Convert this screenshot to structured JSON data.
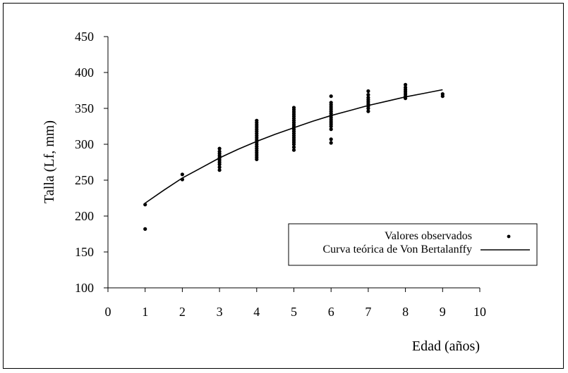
{
  "chart_data": {
    "type": "scatter",
    "xlabel": "Edad (años)",
    "ylabel": "Talla (Lf, mm)",
    "xlim": [
      0,
      10
    ],
    "ylim": [
      100,
      450
    ],
    "xticks": [
      0,
      1,
      2,
      3,
      4,
      5,
      6,
      7,
      8,
      9,
      10
    ],
    "yticks": [
      100,
      150,
      200,
      250,
      300,
      350,
      400,
      450
    ],
    "grid": false,
    "legend_position": "bottom-right",
    "legend": [
      "Valores observados",
      "Curva teórica de Von Bertalanffy"
    ],
    "series": [
      {
        "name": "Valores observados",
        "kind": "points",
        "color": "#000000",
        "points": [
          [
            1,
            216
          ],
          [
            1,
            182
          ],
          [
            2,
            258
          ],
          [
            2,
            251
          ],
          [
            3,
            294
          ],
          [
            3,
            290
          ],
          [
            3,
            287
          ],
          [
            3,
            284
          ],
          [
            3,
            281
          ],
          [
            3,
            278
          ],
          [
            3,
            275
          ],
          [
            3,
            272
          ],
          [
            3,
            268
          ],
          [
            3,
            264
          ],
          [
            4,
            333
          ],
          [
            4,
            330
          ],
          [
            4,
            327
          ],
          [
            4,
            324
          ],
          [
            4,
            321
          ],
          [
            4,
            318
          ],
          [
            4,
            315
          ],
          [
            4,
            312
          ],
          [
            4,
            309
          ],
          [
            4,
            306
          ],
          [
            4,
            303
          ],
          [
            4,
            300
          ],
          [
            4,
            297
          ],
          [
            4,
            294
          ],
          [
            4,
            291
          ],
          [
            4,
            288
          ],
          [
            4,
            285
          ],
          [
            4,
            282
          ],
          [
            4,
            279
          ],
          [
            5,
            351
          ],
          [
            5,
            348
          ],
          [
            5,
            345
          ],
          [
            5,
            342
          ],
          [
            5,
            339
          ],
          [
            5,
            336
          ],
          [
            5,
            333
          ],
          [
            5,
            330
          ],
          [
            5,
            327
          ],
          [
            5,
            324
          ],
          [
            5,
            321
          ],
          [
            5,
            318
          ],
          [
            5,
            315
          ],
          [
            5,
            312
          ],
          [
            5,
            309
          ],
          [
            5,
            306
          ],
          [
            5,
            303
          ],
          [
            5,
            300
          ],
          [
            5,
            296
          ],
          [
            5,
            292
          ],
          [
            6,
            367
          ],
          [
            6,
            358
          ],
          [
            6,
            355
          ],
          [
            6,
            352
          ],
          [
            6,
            349
          ],
          [
            6,
            346
          ],
          [
            6,
            343
          ],
          [
            6,
            340
          ],
          [
            6,
            337
          ],
          [
            6,
            334
          ],
          [
            6,
            331
          ],
          [
            6,
            328
          ],
          [
            6,
            325
          ],
          [
            6,
            321
          ],
          [
            6,
            307
          ],
          [
            6,
            302
          ],
          [
            7,
            374
          ],
          [
            7,
            369
          ],
          [
            7,
            365
          ],
          [
            7,
            362
          ],
          [
            7,
            359
          ],
          [
            7,
            356
          ],
          [
            7,
            353
          ],
          [
            7,
            350
          ],
          [
            7,
            346
          ],
          [
            8,
            383
          ],
          [
            8,
            379
          ],
          [
            8,
            376
          ],
          [
            8,
            373
          ],
          [
            8,
            370
          ],
          [
            8,
            367
          ],
          [
            8,
            364
          ],
          [
            9,
            370
          ],
          [
            9,
            367
          ]
        ]
      },
      {
        "name": "Curva teórica de Von Bertalanffy",
        "kind": "line",
        "color": "#000000",
        "x": [
          1,
          1.5,
          2,
          2.5,
          3,
          3.5,
          4,
          4.5,
          5,
          5.5,
          6,
          6.5,
          7,
          7.5,
          8,
          8.5,
          9
        ],
        "y": [
          218,
          236,
          253,
          267,
          281,
          293,
          304,
          314,
          323,
          332,
          340,
          347,
          354,
          360,
          366,
          371,
          376
        ]
      }
    ]
  }
}
